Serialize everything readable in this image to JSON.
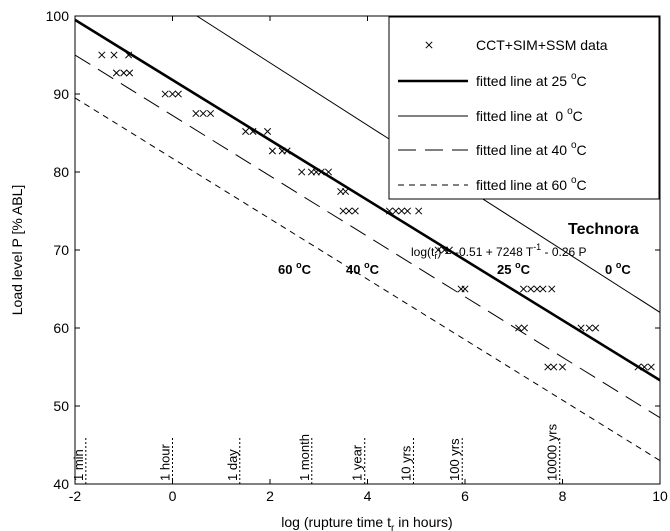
{
  "chart_data": {
    "type": "scatter",
    "xlabel_main": "log (rupture time t",
    "xlabel_sub": "r",
    "xlabel_tail": " in hours)",
    "ylabel": "Load level P   [% ABL]",
    "xlim": [
      -2,
      10
    ],
    "ylim": [
      40,
      100
    ],
    "x_ticks": [
      "-2",
      "0",
      "2",
      "4",
      "6",
      "8",
      "10"
    ],
    "y_ticks": [
      "40",
      "50",
      "60",
      "70",
      "80",
      "90",
      "100"
    ],
    "legend": {
      "placement": "top-right",
      "entries": [
        {
          "label": "CCT+SIM+SSM data",
          "sup": "",
          "style": "marker"
        },
        {
          "label": "fitted line at 25 ",
          "sup": "o",
          "tail": "C",
          "style": "thick"
        },
        {
          "label": "fitted line at  0 ",
          "sup": "o",
          "tail": "C",
          "style": "thin"
        },
        {
          "label": "fitted line at 40 ",
          "sup": "o",
          "tail": "C",
          "style": "longdash"
        },
        {
          "label": "fitted line at 60 ",
          "sup": "o",
          "tail": "C",
          "style": "shortdash"
        }
      ]
    },
    "annotations": {
      "material": "Technora",
      "equation_a": "log(t",
      "equation_sub": "r",
      "equation_b": ") = -0.51 + 7248 T",
      "equation_sup": "-1",
      "equation_c": " - 0.26 P",
      "temp_60": "60 ",
      "temp_40": "40 ",
      "temp_25": "25 ",
      "temp_0": "0 ",
      "deg": "o",
      "unit": "C"
    },
    "time_markers": [
      {
        "label": "1 min",
        "x": -1.778
      },
      {
        "label": "1 hour",
        "x": 0
      },
      {
        "label": "1 day",
        "x": 1.38
      },
      {
        "label": "1 month",
        "x": 2.857
      },
      {
        "label": "1 year",
        "x": 3.943
      },
      {
        "label": "10 yrs",
        "x": 4.943
      },
      {
        "label": "100 yrs",
        "x": 5.943
      },
      {
        "label": "10000 yrs",
        "x": 7.943
      }
    ],
    "series": [
      {
        "name": "fitted line at 25 oC",
        "style": "thick",
        "x": [
          -2,
          10
        ],
        "y": [
          99.5,
          53.3
        ]
      },
      {
        "name": "fitted line at  0 oC",
        "style": "thin",
        "x": [
          0.5,
          10
        ],
        "y": [
          100,
          62
        ]
      },
      {
        "name": "fitted line at 40 oC",
        "style": "longdash",
        "x": [
          -2,
          10
        ],
        "y": [
          95,
          48.5
        ]
      },
      {
        "name": "fitted line at 60 oC",
        "style": "shortdash",
        "x": [
          -2,
          10
        ],
        "y": [
          89.5,
          43
        ]
      }
    ],
    "data_points": {
      "name": "CCT+SIM+SSM data",
      "points": [
        [
          -1.45,
          95
        ],
        [
          -1.2,
          95
        ],
        [
          -0.9,
          95
        ],
        [
          -1.15,
          92.7
        ],
        [
          -1.0,
          92.7
        ],
        [
          -0.88,
          92.7
        ],
        [
          -0.15,
          90
        ],
        [
          0.0,
          90
        ],
        [
          0.12,
          90
        ],
        [
          0.48,
          87.5
        ],
        [
          0.63,
          87.5
        ],
        [
          0.78,
          87.5
        ],
        [
          1.5,
          85.2
        ],
        [
          1.65,
          85.2
        ],
        [
          1.95,
          85.2
        ],
        [
          2.05,
          82.7
        ],
        [
          2.25,
          82.7
        ],
        [
          2.35,
          82.7
        ],
        [
          2.65,
          80
        ],
        [
          2.85,
          80
        ],
        [
          2.95,
          80
        ],
        [
          3.05,
          80
        ],
        [
          3.2,
          80
        ],
        [
          3.45,
          77.5
        ],
        [
          3.55,
          77.5
        ],
        [
          3.5,
          75
        ],
        [
          3.62,
          75
        ],
        [
          3.75,
          75
        ],
        [
          4.45,
          75
        ],
        [
          4.58,
          75
        ],
        [
          4.7,
          75
        ],
        [
          4.82,
          75
        ],
        [
          5.05,
          75
        ],
        [
          5.45,
          70
        ],
        [
          5.58,
          70
        ],
        [
          5.68,
          70
        ],
        [
          5.92,
          65
        ],
        [
          6.0,
          65
        ],
        [
          7.1,
          60
        ],
        [
          7.22,
          60
        ],
        [
          7.2,
          65
        ],
        [
          7.35,
          65
        ],
        [
          7.48,
          65
        ],
        [
          7.6,
          65
        ],
        [
          7.78,
          65
        ],
        [
          7.7,
          55
        ],
        [
          7.82,
          55
        ],
        [
          8.0,
          55
        ],
        [
          8.38,
          60
        ],
        [
          8.55,
          60
        ],
        [
          8.68,
          60
        ],
        [
          9.55,
          55
        ],
        [
          9.68,
          55
        ],
        [
          9.82,
          55
        ]
      ]
    }
  }
}
